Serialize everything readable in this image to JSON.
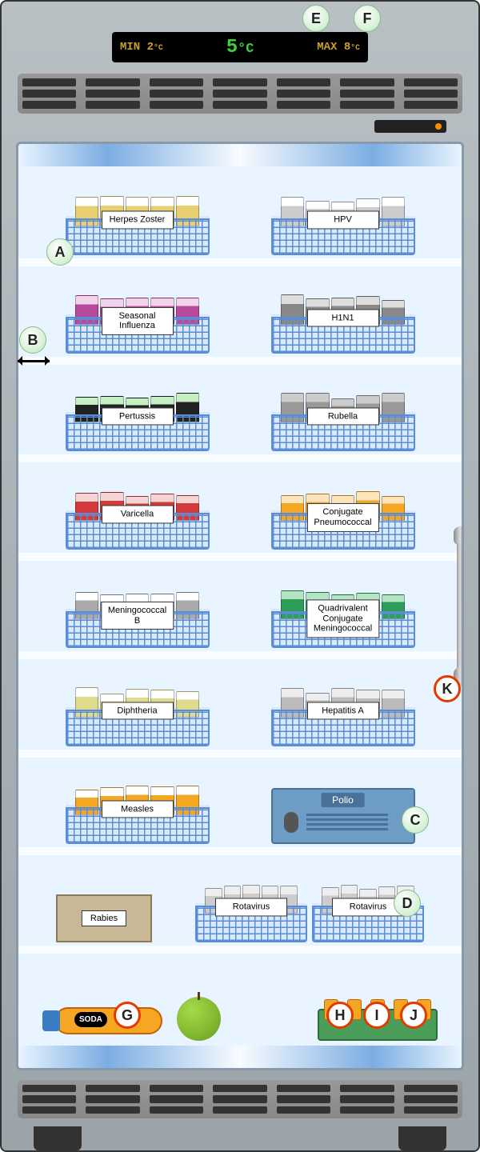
{
  "temperature_display": {
    "min_label": "MIN 2",
    "temp": "5",
    "max_label": "MAX 8",
    "unit": "°C",
    "temp_color": "#3bd23b",
    "minmax_color": "#c9a227"
  },
  "shelves": [
    {
      "left": {
        "label": "Herpes Zoster",
        "vial_color": "#e8d070",
        "vial_top": "#fff"
      },
      "right": {
        "label": "HPV",
        "vial_color": "#ccc",
        "vial_top": "#fff"
      }
    },
    {
      "left": {
        "label": "Seasonal Influenza",
        "vial_color": "#b84a9e",
        "vial_top": "#f2d4ea"
      },
      "right": {
        "label": "H1N1",
        "vial_color": "#888",
        "vial_top": "#ddd"
      }
    },
    {
      "left": {
        "label": "Pertussis",
        "vial_color": "#222",
        "vial_top": "#c4f0c4"
      },
      "right": {
        "label": "Rubella",
        "vial_color": "#999",
        "vial_top": "#ccc"
      }
    },
    {
      "left": {
        "label": "Varicella",
        "vial_color": "#d43a3a",
        "vial_top": "#f5d4d4"
      },
      "right": {
        "label": "Conjugate Pneumococcal",
        "vial_color": "#f5a623",
        "vial_top": "#fce4bc"
      }
    },
    {
      "left": {
        "label": "Meningococcal B",
        "vial_color": "#aaa",
        "vial_top": "#fff"
      },
      "right": {
        "label": "Quadrivalent Conjugate Meningococcal",
        "vial_color": "#2d9e5a",
        "vial_top": "#b4e4c4"
      }
    },
    {
      "left": {
        "label": "Diphtheria",
        "vial_color": "#e0db8c",
        "vial_top": "#fff"
      },
      "right": {
        "label": "Hepatitis A",
        "vial_color": "#bbb",
        "vial_top": "#eee"
      }
    },
    {
      "left": {
        "label": "Measles",
        "vial_color": "#f5a623",
        "vial_top": "#fff"
      },
      "right_special": "polio",
      "polio_label": "Polio"
    },
    {
      "left_special": "rabies",
      "rabies_label": "Rabies",
      "right": {
        "label": "Rotavirus",
        "vial_color": "#ccc",
        "vial_top": "#eee"
      },
      "right2": {
        "label": "Rotavirus",
        "vial_color": "#ccc",
        "vial_top": "#eee"
      }
    },
    {
      "special": "bottom",
      "soda_label": "SODA"
    }
  ],
  "callouts": {
    "A": {
      "text": "A",
      "prohibited": false
    },
    "B": {
      "text": "B",
      "prohibited": false
    },
    "C": {
      "text": "C",
      "prohibited": false
    },
    "D": {
      "text": "D",
      "prohibited": false
    },
    "E": {
      "text": "E",
      "prohibited": false
    },
    "F": {
      "text": "F",
      "prohibited": false
    },
    "G": {
      "text": "G",
      "prohibited": true
    },
    "H": {
      "text": "H",
      "prohibited": true
    },
    "I": {
      "text": "I",
      "prohibited": true
    },
    "J": {
      "text": "J",
      "prohibited": true
    },
    "K": {
      "text": "K",
      "prohibited": true
    }
  },
  "colors": {
    "basket_wire": "#5a8dd6",
    "door_bg": "#e8f4ff",
    "shelf_divider": "#fafdff"
  }
}
